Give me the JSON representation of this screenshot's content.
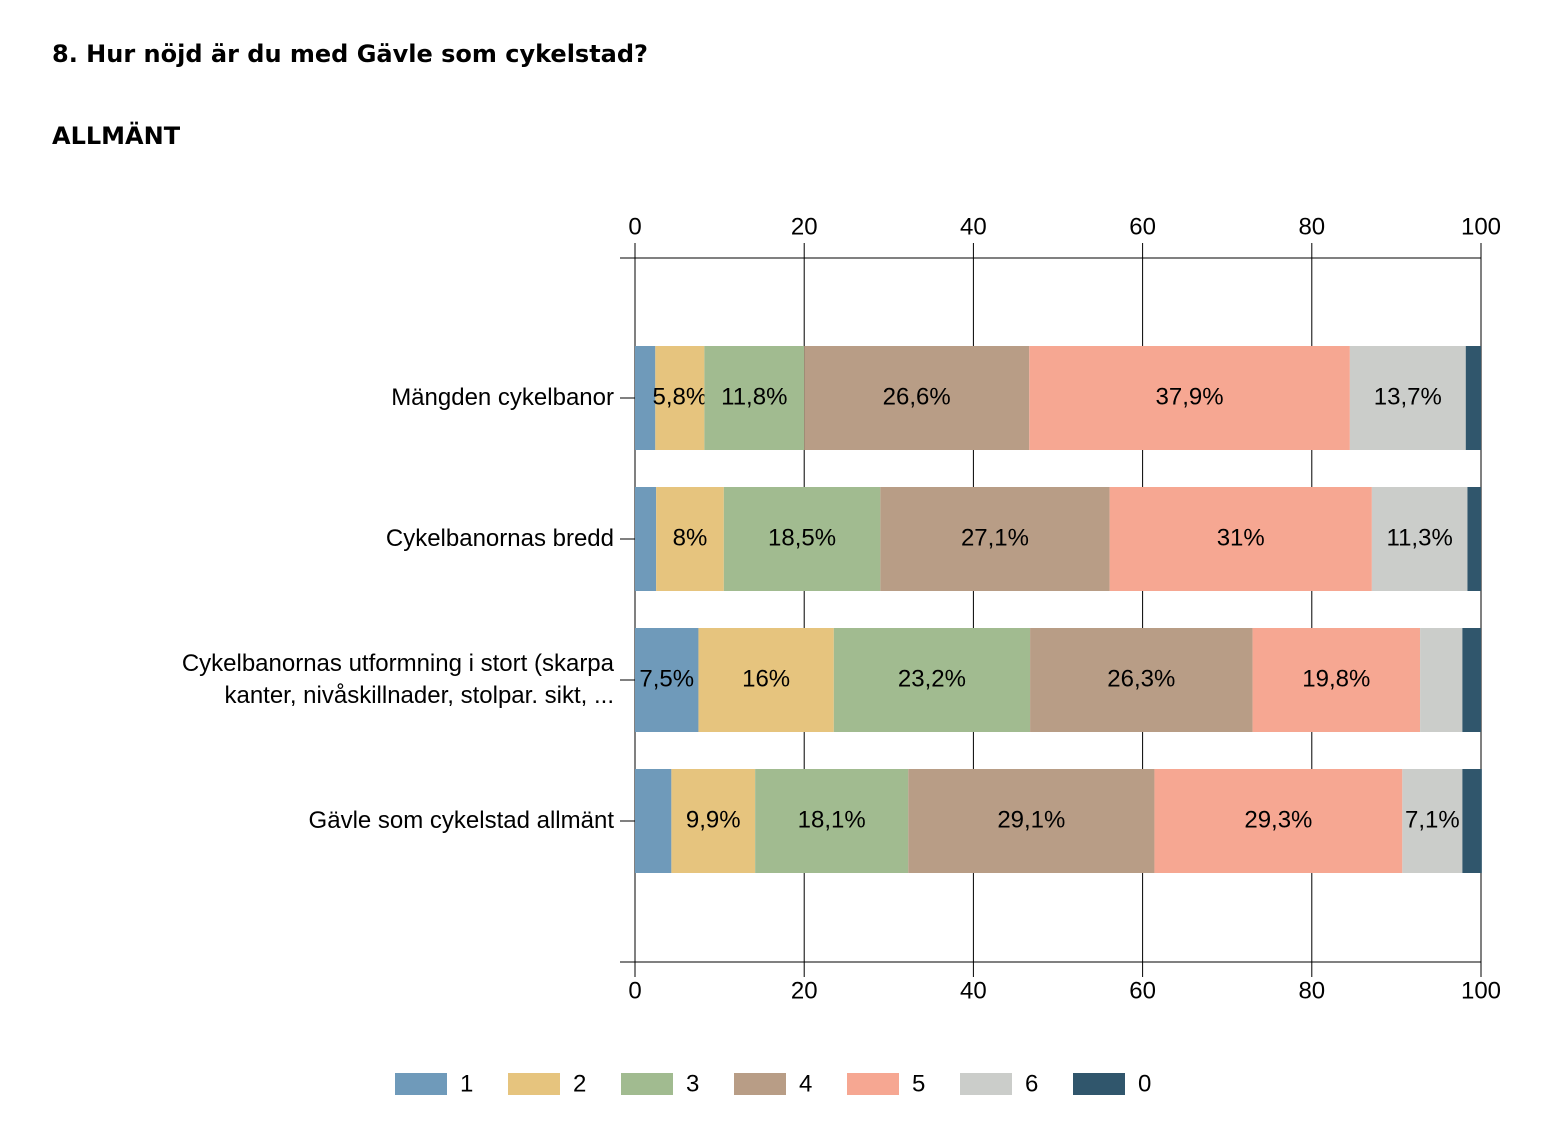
{
  "heading": "8. Hur nöjd är du med Gävle som cykelstad?",
  "chart_data": {
    "type": "stacked-bar-horizontal",
    "title": "ALLMÄNT",
    "categories": [
      "Mängden cykelbanor",
      "Cykelbanornas bredd",
      "Cykelbanornas utformning i stort (skarpa\nkanter, nivåskillnader, stolpar. sikt, ...",
      "Gävle som cykelstad allmänt"
    ],
    "series": [
      {
        "name": "1",
        "color": "#6f9aba",
        "values": [
          2.4,
          2.5,
          7.5,
          4.3
        ],
        "value_labels": [
          null,
          null,
          "7,5%",
          null
        ]
      },
      {
        "name": "2",
        "color": "#e6c47e",
        "values": [
          5.8,
          8,
          16,
          9.9
        ],
        "value_labels": [
          "5,8%",
          "8%",
          "16%",
          "9,9%"
        ]
      },
      {
        "name": "3",
        "color": "#a1bb90",
        "values": [
          11.8,
          18.5,
          23.2,
          18.1
        ],
        "value_labels": [
          "11,8%",
          "18,5%",
          "23,2%",
          "18,1%"
        ]
      },
      {
        "name": "4",
        "color": "#b89d86",
        "values": [
          26.6,
          27.1,
          26.3,
          29.1
        ],
        "value_labels": [
          "26,6%",
          "27,1%",
          "26,3%",
          "29,1%"
        ]
      },
      {
        "name": "5",
        "color": "#f6a792",
        "values": [
          37.9,
          31,
          19.8,
          29.3
        ],
        "value_labels": [
          "37,9%",
          "31%",
          "19,8%",
          "29,3%"
        ]
      },
      {
        "name": "6",
        "color": "#cbcdca",
        "values": [
          13.7,
          11.3,
          5.0,
          7.1
        ],
        "value_labels": [
          "13,7%",
          "11,3%",
          null,
          "7,1%"
        ]
      },
      {
        "name": "0",
        "color": "#30566c",
        "values": [
          1.8,
          1.6,
          2.2,
          2.3
        ],
        "value_labels": [
          null,
          null,
          null,
          null
        ]
      }
    ],
    "xlim": [
      0,
      100
    ],
    "xticks": [
      0,
      20,
      40,
      60,
      80,
      100
    ],
    "grid": true,
    "legend": "bottom"
  }
}
